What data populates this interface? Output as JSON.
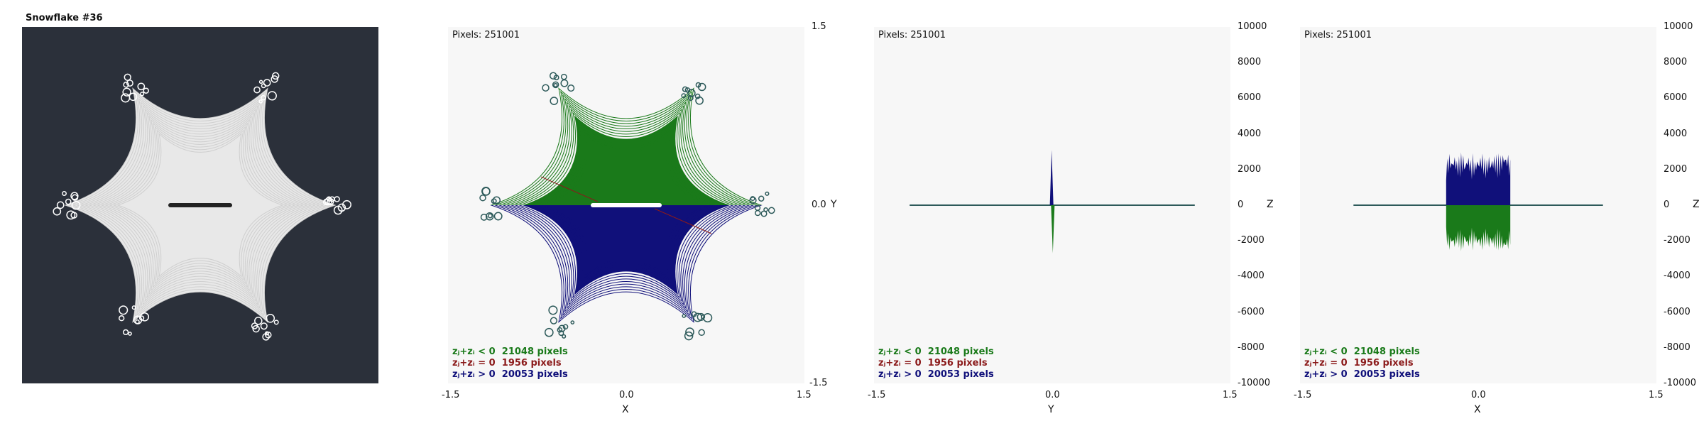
{
  "title": "Snowflake #36",
  "colors": {
    "dark_bg": "#2b303a",
    "plot_bg": "#f7f7f7",
    "neg": "#1a7a1a",
    "zero": "#8b1a1a",
    "pos": "#10107a",
    "flake": "#e8e8e8"
  },
  "panels": [
    {
      "id": "xy",
      "pixels_label": "Pixels: 251001",
      "xlabel": "X",
      "ylabel": "Y",
      "xticks": [
        "-1.5",
        "0.0",
        "1.5"
      ],
      "yticks": [
        "1.5",
        "0.0",
        "-1.5"
      ],
      "legend": [
        "zⱼ+zᵢ < 0  21048 pixels",
        "zⱼ+zᵢ = 0  1956 pixels",
        "zⱼ+zᵢ > 0  20053 pixels"
      ]
    },
    {
      "id": "yz",
      "pixels_label": "Pixels: 251001",
      "xlabel": "Y",
      "ylabel": "Z",
      "xticks": [
        "-1.5",
        "0.0",
        "1.5"
      ],
      "yticks": [
        "10000",
        "8000",
        "6000",
        "4000",
        "2000",
        "0",
        "-2000",
        "-4000",
        "-6000",
        "-8000",
        "-10000"
      ],
      "legend": [
        "zⱼ+zᵢ < 0  21048 pixels",
        "zⱼ+zᵢ = 0  1956 pixels",
        "zⱼ+zᵢ > 0  20053 pixels"
      ]
    },
    {
      "id": "xz",
      "pixels_label": "Pixels: 251001",
      "xlabel": "X",
      "ylabel": "Z",
      "xticks": [
        "-1.5",
        "0.0",
        "1.5"
      ],
      "yticks": [
        "10000",
        "8000",
        "6000",
        "4000",
        "2000",
        "0",
        "-2000",
        "-4000",
        "-6000",
        "-8000",
        "-10000"
      ],
      "legend": [
        "zⱼ+zᵢ < 0  21048 pixels",
        "zⱼ+zᵢ = 0  1956 pixels",
        "zⱼ+zᵢ > 0  20053 pixels"
      ]
    }
  ],
  "chart_data": [
    {
      "type": "scatter",
      "id": "xy",
      "xlim": [
        -1.5,
        1.5
      ],
      "ylim": [
        -1.5,
        1.5
      ],
      "series": [
        {
          "name": "zⱼ+zᵢ < 0",
          "count": 21048
        },
        {
          "name": "zⱼ+zᵢ = 0",
          "count": 1956
        },
        {
          "name": "zⱼ+zᵢ > 0",
          "count": 20053
        }
      ]
    },
    {
      "type": "scatter",
      "id": "yz",
      "xlim": [
        -1.5,
        1.5
      ],
      "ylim": [
        -10000,
        10000
      ],
      "pos_peak": 3100,
      "neg_peak": -2700,
      "spread_y": [
        -1.2,
        1.2
      ]
    },
    {
      "type": "scatter",
      "id": "xz",
      "xlim": [
        -1.5,
        1.5
      ],
      "ylim": [
        -10000,
        10000
      ],
      "pos_peak": 3100,
      "neg_peak": -2700,
      "spread_x": [
        -1.05,
        1.05
      ],
      "core_x": [
        -0.27,
        0.27
      ]
    }
  ]
}
